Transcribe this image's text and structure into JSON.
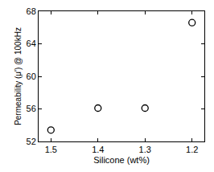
{
  "chart_data": {
    "type": "scatter",
    "x_label": "Silicone (wt%)",
    "y_label": "Permeability (μ') @ 100kHz",
    "categories": [
      "1.5",
      "1.4",
      "1.3",
      "1.2"
    ],
    "values": [
      53.4,
      56.1,
      56.1,
      66.6
    ],
    "color": "#000000",
    "marker": "open circle",
    "ylim": [
      52,
      68
    ],
    "yticks": [
      52,
      56,
      60,
      64,
      68
    ],
    "grid": false
  }
}
